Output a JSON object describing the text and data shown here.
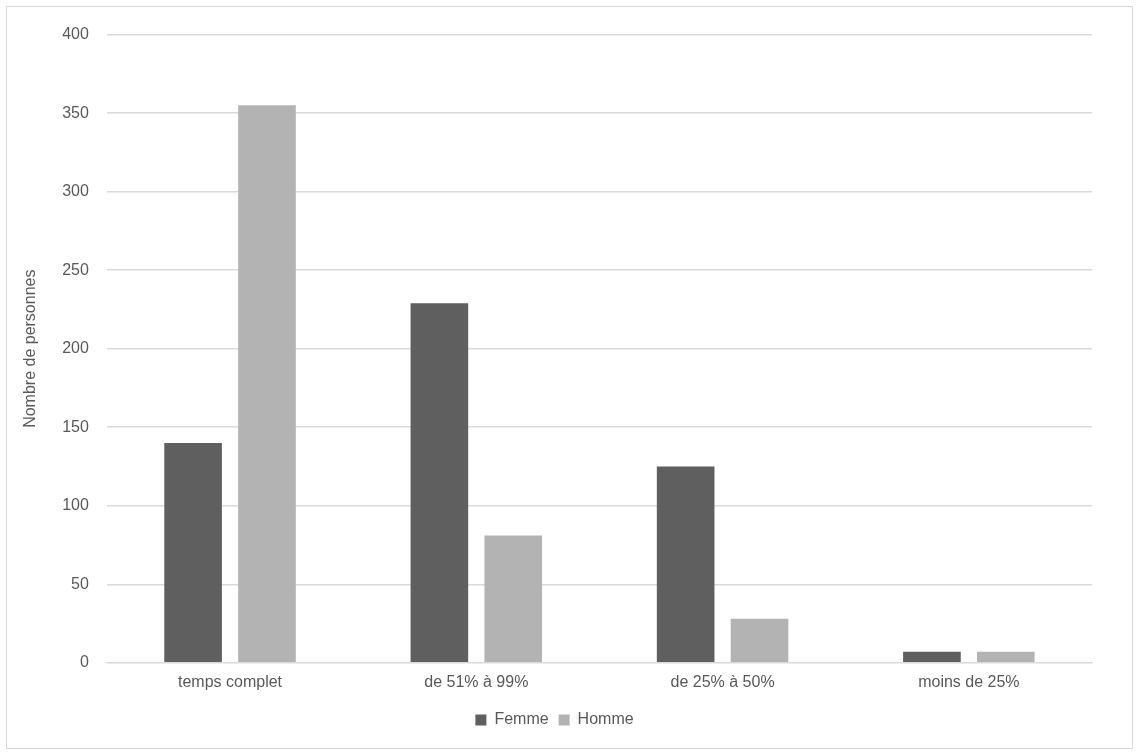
{
  "chart_data": {
    "type": "bar",
    "ylabel": "Nombre de personnes",
    "categories": [
      "temps complet",
      "de 51% à 99%",
      "de 25% à 50%",
      "moins de 25%"
    ],
    "series": [
      {
        "name": "Femme",
        "color": "#5f5f5f",
        "values": [
          140,
          229,
          125,
          7
        ]
      },
      {
        "name": "Homme",
        "color": "#b3b3b3",
        "values": [
          355,
          81,
          28,
          7
        ]
      }
    ],
    "ylim": [
      0,
      400
    ],
    "yticks": [
      0,
      50,
      100,
      150,
      200,
      250,
      300,
      350,
      400
    ],
    "grid": "y",
    "legend": "bottom"
  }
}
